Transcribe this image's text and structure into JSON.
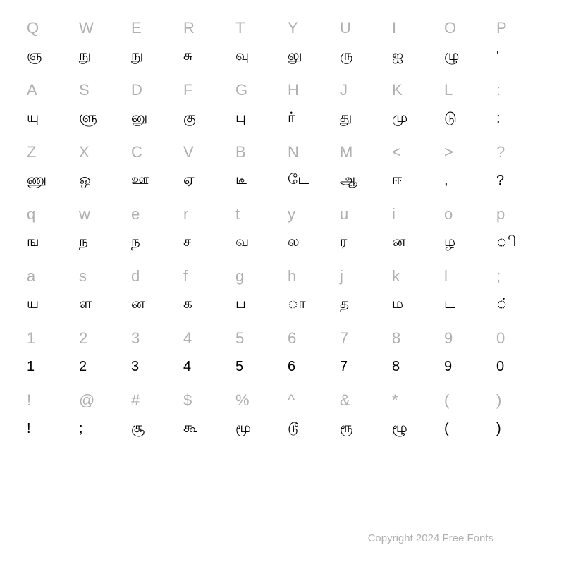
{
  "rows": [
    {
      "keys": [
        "Q",
        "W",
        "E",
        "R",
        "T",
        "Y",
        "U",
        "I",
        "O",
        "P"
      ],
      "glyphs": [
        "ஞ",
        "நு",
        "நு",
        "சு",
        "வு",
        "லு",
        "ரு",
        "ஐ",
        "ழு",
        "'"
      ]
    },
    {
      "keys": [
        "A",
        "S",
        "D",
        "F",
        "G",
        "H",
        "J",
        "K",
        "L",
        ":"
      ],
      "glyphs": [
        "யு",
        "ளு",
        "னு",
        "கு",
        "பு",
        "ர்",
        "து",
        "மு",
        "டு",
        ":"
      ]
    },
    {
      "keys": [
        "Z",
        "X",
        "C",
        "V",
        "B",
        "N",
        "M",
        "<",
        ">",
        "?"
      ],
      "glyphs": [
        "ணு",
        "ஒ",
        "ஊ",
        "ஏ",
        "டீ",
        "டே",
        "ஆ",
        "ஈ",
        ",",
        "?"
      ]
    },
    {
      "keys": [
        "q",
        "w",
        "e",
        "r",
        "t",
        "y",
        "u",
        "i",
        "o",
        "p"
      ],
      "glyphs": [
        "ங",
        "ந",
        "ந",
        "ச",
        "வ",
        "ல",
        "ர",
        "ன",
        "ழ",
        "ி"
      ]
    },
    {
      "keys": [
        "a",
        "s",
        "d",
        "f",
        "g",
        "h",
        "j",
        "k",
        "l",
        ";"
      ],
      "glyphs": [
        "ய",
        "ள",
        "ன",
        "க",
        "ப",
        "ா",
        "த",
        "ம",
        "ட",
        "்"
      ]
    },
    {
      "keys": [
        "1",
        "2",
        "3",
        "4",
        "5",
        "6",
        "7",
        "8",
        "9",
        "0"
      ],
      "glyphs": [
        "1",
        "2",
        "3",
        "4",
        "5",
        "6",
        "7",
        "8",
        "9",
        "0"
      ]
    },
    {
      "keys": [
        "!",
        "@",
        "#",
        "$",
        "%",
        "^",
        "&",
        "*",
        "(",
        ")"
      ],
      "glyphs": [
        "!",
        ";",
        "சூ",
        "கூ",
        "மூ",
        "டூ",
        "ரூ",
        "ழூ",
        "(",
        ")"
      ]
    }
  ],
  "copyright": "Copyright 2024 Free Fonts",
  "colors": {
    "key_label": "#b0b0b0",
    "glyph": "#000000",
    "background": "#ffffff",
    "copyright": "#b0b0b0"
  },
  "typography": {
    "key_fontsize": 22,
    "glyph_fontsize": 20,
    "copyright_fontsize": 15
  }
}
